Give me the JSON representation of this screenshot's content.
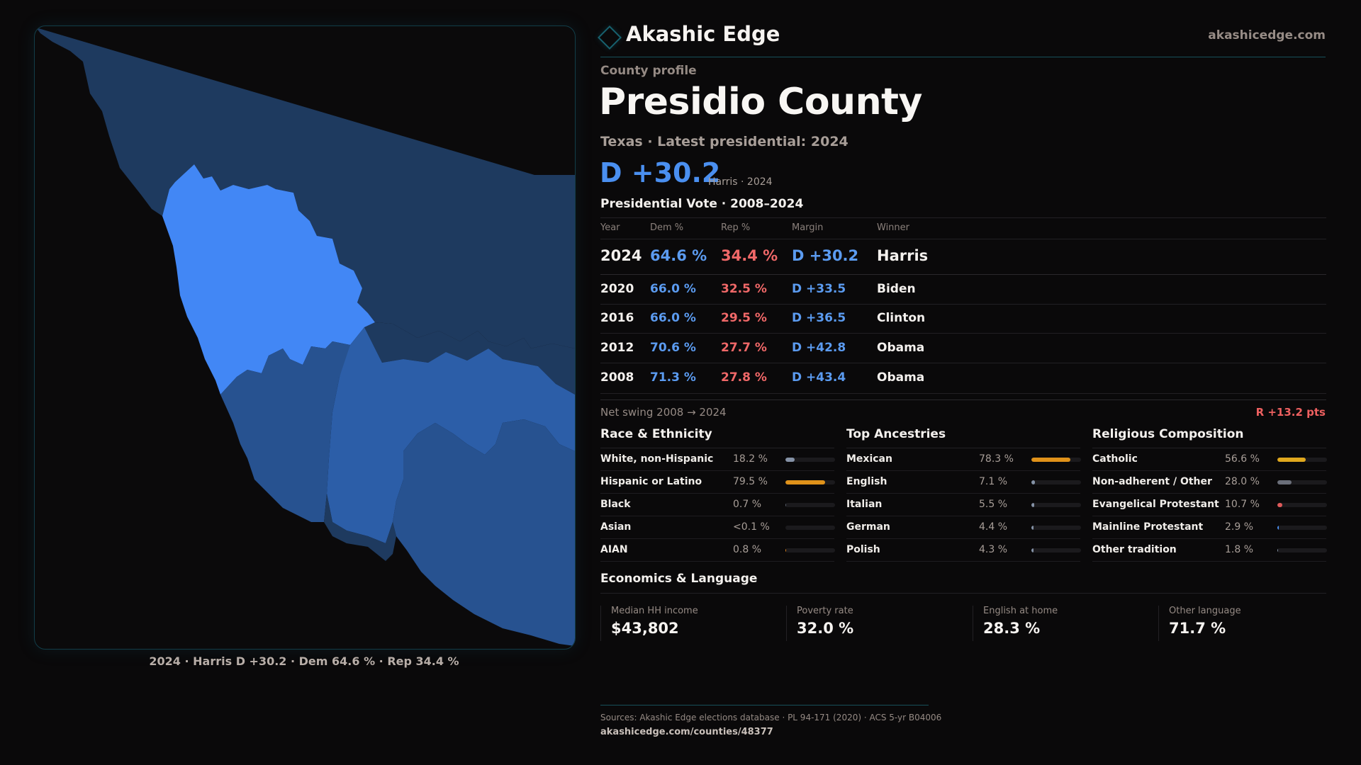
{
  "header": {
    "brand_name": "Akashic Edge",
    "brand_icon": "diamond-icon",
    "site_url": "akashicedge.com"
  },
  "profile": {
    "eyebrow": "County profile",
    "county_name": "Presidio County",
    "subtitle": "Texas · Latest presidential: 2024",
    "latest_margin": "D +30.2",
    "latest_margin_meta": "Harris · 2024"
  },
  "map": {
    "caption": "2024 · Harris D +30.2 · Dem 64.6 % · Rep 34.4 %",
    "colors": {
      "highlight": "#4287f5",
      "strong_d": "#2c5ea8",
      "lean_d": "#275290",
      "dark": "#1e3a5f"
    }
  },
  "presidential": {
    "title": "Presidential Vote · 2008–2024",
    "columns": [
      "Year",
      "Dem %",
      "Rep %",
      "Margin",
      "Winner"
    ],
    "rows": [
      {
        "year": "2024",
        "dem": "64.6 %",
        "rep": "34.4 %",
        "margin": "D +30.2",
        "winner": "Harris"
      },
      {
        "year": "2020",
        "dem": "66.0 %",
        "rep": "32.5 %",
        "margin": "D +33.5",
        "winner": "Biden"
      },
      {
        "year": "2016",
        "dem": "66.0 %",
        "rep": "29.5 %",
        "margin": "D +36.5",
        "winner": "Clinton"
      },
      {
        "year": "2012",
        "dem": "70.6 %",
        "rep": "27.7 %",
        "margin": "D +42.8",
        "winner": "Obama"
      },
      {
        "year": "2008",
        "dem": "71.3 %",
        "rep": "27.8 %",
        "margin": "D +43.4",
        "winner": "Obama"
      }
    ],
    "net_swing_label": "Net swing 2008 → 2024",
    "net_swing_value": "R +13.2 pts"
  },
  "demographics": {
    "race": {
      "title": "Race & Ethnicity",
      "rows": [
        {
          "label": "White, non-Hispanic",
          "value": "18.2 %",
          "pct": 18.2,
          "color": "#8592a6"
        },
        {
          "label": "Hispanic or Latino",
          "value": "79.5 %",
          "pct": 79.5,
          "color": "#e0921a"
        },
        {
          "label": "Black",
          "value": "0.7 %",
          "pct": 0.7,
          "color": "#5b6170"
        },
        {
          "label": "Asian",
          "value": "<0.1 %",
          "pct": 0.05,
          "color": "#5b6170"
        },
        {
          "label": "AIAN",
          "value": "0.8 %",
          "pct": 0.8,
          "color": "#e0821a"
        }
      ]
    },
    "ancestry": {
      "title": "Top Ancestries",
      "rows": [
        {
          "label": "Mexican",
          "value": "78.3 %",
          "pct": 78.3,
          "color": "#e0921a"
        },
        {
          "label": "English",
          "value": "7.1 %",
          "pct": 7.1,
          "color": "#8592a6"
        },
        {
          "label": "Italian",
          "value": "5.5 %",
          "pct": 5.5,
          "color": "#8592a6"
        },
        {
          "label": "German",
          "value": "4.4 %",
          "pct": 4.4,
          "color": "#8592a6"
        },
        {
          "label": "Polish",
          "value": "4.3 %",
          "pct": 4.3,
          "color": "#8592a6"
        }
      ]
    },
    "religion": {
      "title": "Religious Composition",
      "rows": [
        {
          "label": "Catholic",
          "value": "56.6 %",
          "pct": 56.6,
          "color": "#e0a81e"
        },
        {
          "label": "Non-adherent / Other",
          "value": "28.0 %",
          "pct": 28.0,
          "color": "#6b6f7a"
        },
        {
          "label": "Evangelical Protestant",
          "value": "10.7 %",
          "pct": 10.7,
          "color": "#e05a5a"
        },
        {
          "label": "Mainline Protestant",
          "value": "2.9 %",
          "pct": 2.9,
          "color": "#4a8ff0"
        },
        {
          "label": "Other tradition",
          "value": "1.8 %",
          "pct": 1.8,
          "color": "#8592a6"
        }
      ]
    }
  },
  "economics": {
    "title": "Economics & Language",
    "stats": [
      {
        "label": "Median HH income",
        "value": "$43,802"
      },
      {
        "label": "Poverty rate",
        "value": "32.0 %"
      },
      {
        "label": "English at home",
        "value": "28.3 %"
      },
      {
        "label": "Other language",
        "value": "71.7 %"
      }
    ]
  },
  "footer": {
    "sources": "Sources: Akashic Edge elections database · PL 94-171 (2020) · ACS 5-yr B04006",
    "link": "akashicedge.com/counties/48377"
  }
}
